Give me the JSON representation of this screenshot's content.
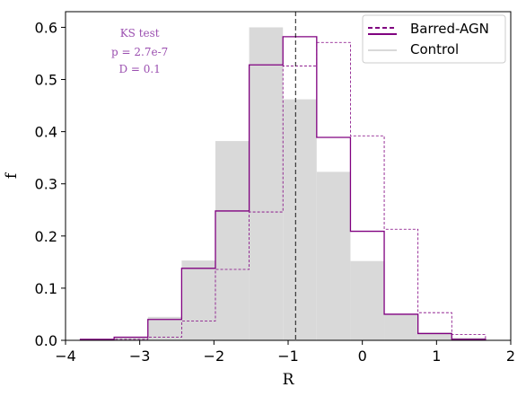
{
  "chart_data": {
    "type": "histogram",
    "xlabel": "R",
    "ylabel": "f",
    "xlim": [
      -4,
      2
    ],
    "ylim": [
      0,
      0.63
    ],
    "xticks": [
      -4,
      -3,
      -2,
      -1,
      0,
      1,
      2
    ],
    "yticks": [
      0.0,
      0.1,
      0.2,
      0.3,
      0.4,
      0.5,
      0.6
    ],
    "xtick_labels": [
      "−4",
      "−3",
      "−2",
      "−1",
      "0",
      "1",
      "2"
    ],
    "ytick_labels": [
      "0.0",
      "0.1",
      "0.2",
      "0.3",
      "0.4",
      "0.5",
      "0.6"
    ],
    "vline_x": -0.9,
    "annotation": [
      "KS test",
      "p = 2.7e-7",
      "D = 0.1"
    ],
    "legend": {
      "placement": "top-right",
      "entries": [
        "Barred-AGN",
        "Control"
      ]
    },
    "colors": {
      "agn": "#800080",
      "control": "#d9d9d9",
      "annotation": "#9b4fb0",
      "vline": "#000000"
    },
    "series": [
      {
        "name": "Control",
        "style": "filled-bars",
        "edges": [
          -3.8,
          -3.345,
          -2.89,
          -2.435,
          -1.98,
          -1.525,
          -1.07,
          -0.615,
          -0.16,
          0.295,
          0.75,
          1.205,
          1.66
        ],
        "values": [
          0.002,
          0.006,
          0.045,
          0.153,
          0.382,
          0.6,
          0.462,
          0.323,
          0.152,
          0.05,
          0.015,
          0.005
        ]
      },
      {
        "name": "Barred-AGN",
        "style": "solid-step",
        "edges": [
          -3.8,
          -3.345,
          -2.89,
          -2.435,
          -1.98,
          -1.525,
          -1.07,
          -0.615,
          -0.16,
          0.295,
          0.75,
          1.205,
          1.66
        ],
        "values": [
          0.002,
          0.006,
          0.04,
          0.138,
          0.248,
          0.528,
          0.582,
          0.389,
          0.209,
          0.05,
          0.013,
          0.002
        ]
      },
      {
        "name": "",
        "style": "dashed-step",
        "edges": [
          -3.8,
          -3.345,
          -2.89,
          -2.435,
          -1.98,
          -1.525,
          -1.07,
          -0.615,
          -0.16,
          0.295,
          0.75,
          1.205,
          1.66
        ],
        "values": [
          0.0,
          0.002,
          0.006,
          0.037,
          0.136,
          0.246,
          0.526,
          0.571,
          0.392,
          0.213,
          0.053,
          0.011
        ]
      }
    ]
  }
}
